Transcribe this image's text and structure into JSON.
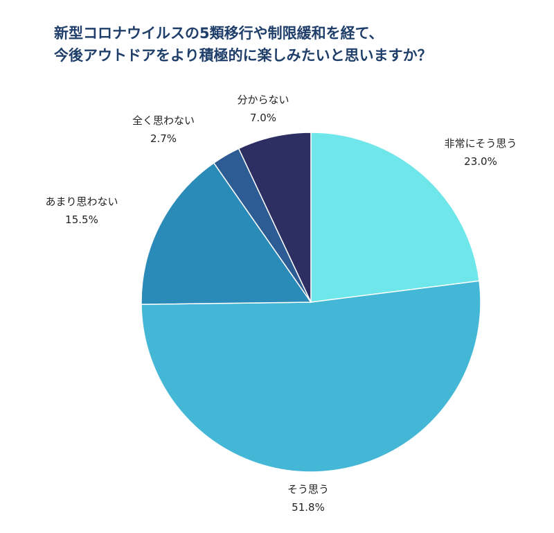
{
  "title": {
    "line1": "新型コロナウイルスの5類移行や制限緩和を経て、",
    "line2": "今後アウトドアをより積極的に楽しみたいと思いますか？"
  },
  "chart_data": {
    "type": "pie",
    "title": "新型コロナウイルスの5類移行や制限緩和を経て、今後アウトドアをより積極的に楽しみたいと思いますか？",
    "start": "top (12 o'clock), clockwise",
    "slices": [
      {
        "label": "非常にそう思う",
        "value": 23.0,
        "display": "23.0%",
        "color": "#6ee6ea"
      },
      {
        "label": "そう思う",
        "value": 51.8,
        "display": "51.8%",
        "color": "#45b7d6"
      },
      {
        "label": "あまり思わない",
        "value": 15.5,
        "display": "15.5%",
        "color": "#2a8ab8"
      },
      {
        "label": "全く思わない",
        "value": 2.7,
        "display": "2.7%",
        "color": "#2d5b93"
      },
      {
        "label": "分からない",
        "value": 7.0,
        "display": "7.0%",
        "color": "#2d2f63"
      }
    ]
  }
}
